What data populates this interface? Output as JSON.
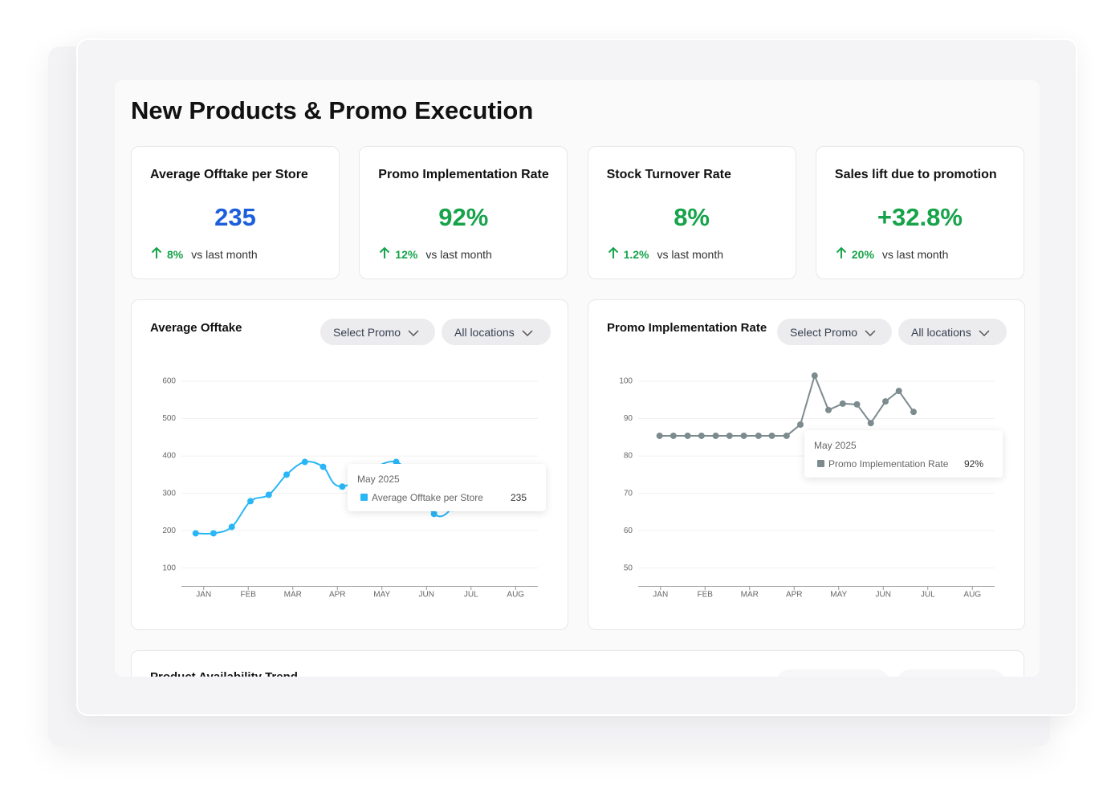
{
  "header": {
    "title": "New Products & Promo Execution"
  },
  "kpis": [
    {
      "title": "Average Offtake per Store",
      "value": "235",
      "change": "8%",
      "note": "vs last month",
      "color": "#1d5fdb"
    },
    {
      "title": "Promo Implementation Rate",
      "value": "92%",
      "change": "12%",
      "note": "vs last month",
      "color": "#16a34a"
    },
    {
      "title": "Stock Turnover Rate",
      "value": "8%",
      "change": "1.2%",
      "note": "vs last month",
      "color": "#16a34a"
    },
    {
      "title": "Sales lift due to promotion",
      "value": "+32.8%",
      "change": "20%",
      "note": "vs last month",
      "color": "#16a34a"
    }
  ],
  "charts": [
    {
      "type": "line",
      "title": "Average Offtake",
      "filters": [
        "Select Promo",
        "All locations"
      ],
      "color": "#29b6f6",
      "x": [
        0.82,
        1.22,
        1.63,
        2.05,
        2.46,
        2.86,
        3.27,
        3.68,
        4.11,
        5.32,
        6.17,
        6.58
      ],
      "values": [
        193,
        193,
        210,
        279,
        296,
        350,
        384,
        371,
        318,
        384,
        245,
        260
      ],
      "xlim": [
        0.5,
        8.5
      ],
      "xticks": [
        {
          "value": 1,
          "label": "JAN"
        },
        {
          "value": 2,
          "label": "FEB"
        },
        {
          "value": 3,
          "label": "MAR"
        },
        {
          "value": 4,
          "label": "APR"
        },
        {
          "value": 5,
          "label": "MAY"
        },
        {
          "value": 6,
          "label": "JUN"
        },
        {
          "value": 7,
          "label": "JUL"
        },
        {
          "value": 8,
          "label": "AUG"
        }
      ],
      "ylim": [
        50,
        600
      ],
      "yticks": [
        100,
        200,
        300,
        400,
        500,
        600
      ],
      "grid": true,
      "smooth": true,
      "tooltip": {
        "date": "May 2025",
        "series": "Average Offtake per Store",
        "value": "235"
      }
    },
    {
      "type": "line",
      "title": "Promo Implementation Rate",
      "filters": [
        "Select Promo",
        "All locations"
      ],
      "color": "#7b8b8e",
      "x": [
        0.98,
        1.29,
        1.61,
        1.92,
        2.24,
        2.55,
        2.87,
        3.2,
        3.5,
        3.83,
        4.14,
        4.46,
        4.77,
        5.09,
        5.41,
        5.72,
        6.05,
        6.35,
        6.68
      ],
      "values": [
        85.4,
        85.4,
        85.4,
        85.4,
        85.4,
        85.4,
        85.4,
        85.4,
        85.4,
        85.4,
        88.4,
        101.5,
        92.3,
        94,
        93.8,
        88.8,
        94.6,
        97.4,
        91.8
      ],
      "xlim": [
        0.5,
        8.5
      ],
      "xticks": [
        {
          "value": 1,
          "label": "JAN"
        },
        {
          "value": 2,
          "label": "FEB"
        },
        {
          "value": 3,
          "label": "MAR"
        },
        {
          "value": 4,
          "label": "APR"
        },
        {
          "value": 5,
          "label": "MAY"
        },
        {
          "value": 6,
          "label": "JUN"
        },
        {
          "value": 7,
          "label": "JUL"
        },
        {
          "value": 8,
          "label": "AUG"
        }
      ],
      "ylim": [
        45,
        100
      ],
      "yticks": [
        50,
        60,
        70,
        80,
        90,
        100
      ],
      "grid": true,
      "smooth": false,
      "tooltip": {
        "date": "May 2025",
        "series": "Promo Implementation Rate",
        "value": "92%"
      }
    }
  ],
  "section": {
    "title": "Product Availability Trend"
  }
}
